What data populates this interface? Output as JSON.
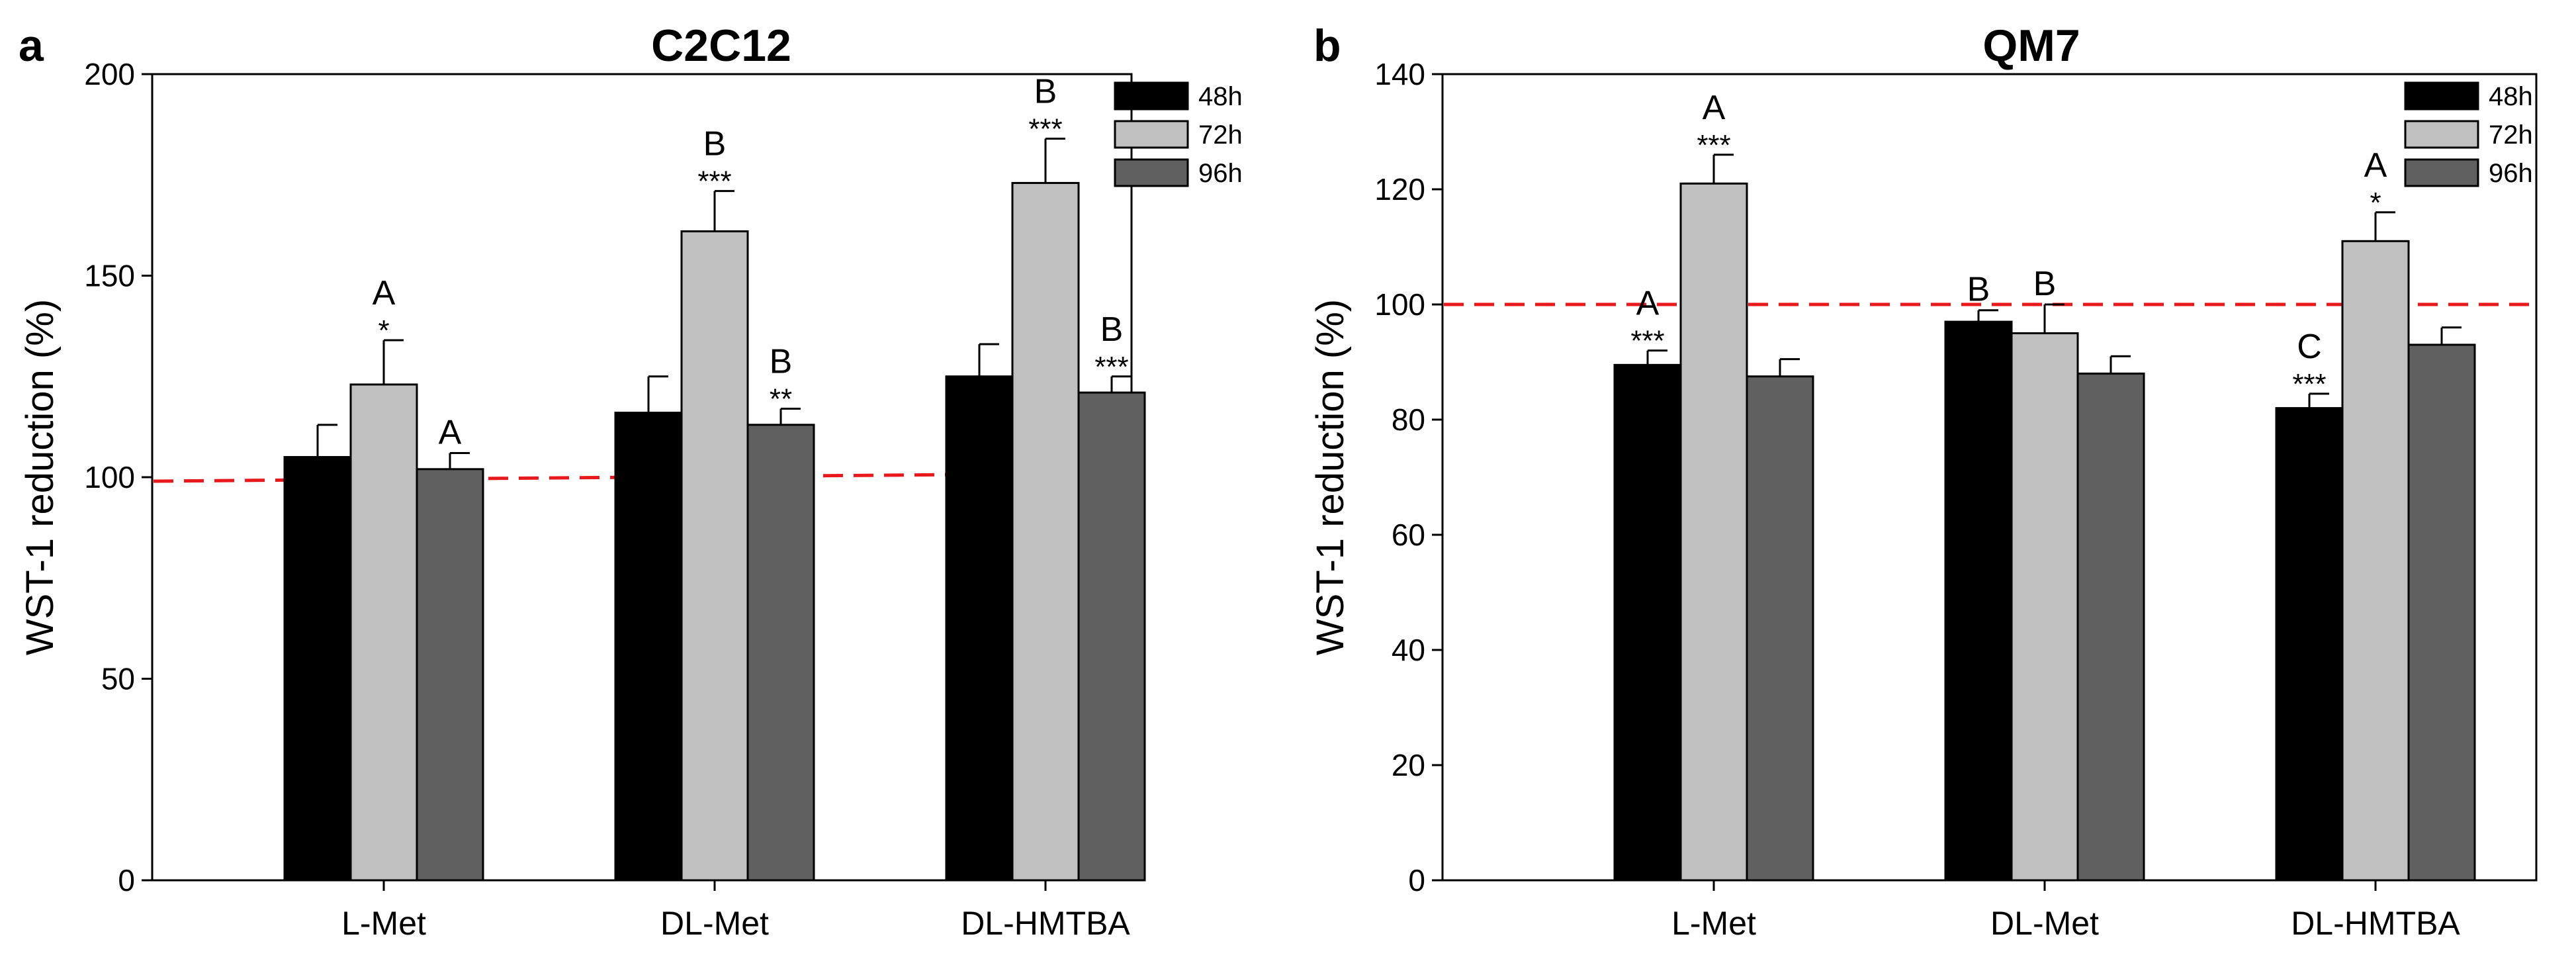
{
  "chart_data": [
    {
      "type": "bar",
      "panel": "a",
      "title": "C2C12",
      "xlabel": "",
      "ylabel": "WST-1 reduction (%)",
      "ylim": [
        0,
        200
      ],
      "yticks": [
        0,
        50,
        100,
        150,
        200
      ],
      "categories": [
        "L-Met",
        "DL-Met",
        "DL-HMTBA"
      ],
      "reference_line": 100,
      "legend_position": "top-right",
      "series": [
        {
          "name": "48h",
          "color": "#000000",
          "values": [
            105,
            116,
            125
          ],
          "errors": [
            8,
            9,
            8
          ],
          "letters": [
            "",
            "",
            ""
          ],
          "stars": [
            "",
            "",
            ""
          ]
        },
        {
          "name": "72h",
          "color": "#c0c0c0",
          "values": [
            123,
            161,
            173
          ],
          "errors": [
            11,
            10,
            11
          ],
          "letters": [
            "A",
            "B",
            "B"
          ],
          "stars": [
            "*",
            "***",
            "***"
          ]
        },
        {
          "name": "96h",
          "color": "#606060",
          "values": [
            102,
            113,
            121
          ],
          "errors": [
            4,
            4,
            4
          ],
          "letters": [
            "A",
            "B",
            "B"
          ],
          "stars": [
            "",
            "**",
            "***"
          ]
        }
      ]
    },
    {
      "type": "bar",
      "panel": "b",
      "title": "QM7",
      "xlabel": "",
      "ylabel": "WST-1 reduction (%)",
      "ylim": [
        0,
        140
      ],
      "yticks": [
        0,
        20,
        40,
        60,
        80,
        100,
        120,
        140
      ],
      "categories": [
        "L-Met",
        "DL-Met",
        "DL-HMTBA"
      ],
      "reference_line": 100,
      "legend_position": "top-right",
      "series": [
        {
          "name": "48h",
          "color": "#000000",
          "values": [
            89.5,
            97,
            82
          ],
          "errors": [
            2.5,
            2,
            2.5
          ],
          "letters": [
            "A",
            "B",
            "C"
          ],
          "stars": [
            "***",
            "",
            "***"
          ]
        },
        {
          "name": "72h",
          "color": "#c0c0c0",
          "values": [
            121,
            95,
            111
          ],
          "errors": [
            5,
            5,
            5
          ],
          "letters": [
            "A",
            "B",
            "A"
          ],
          "stars": [
            "***",
            "",
            "*"
          ]
        },
        {
          "name": "96h",
          "color": "#606060",
          "values": [
            87.5,
            88,
            93
          ],
          "errors": [
            3,
            3,
            3
          ],
          "letters": [
            "",
            "",
            ""
          ],
          "stars": [
            "",
            "",
            ""
          ]
        }
      ]
    }
  ]
}
